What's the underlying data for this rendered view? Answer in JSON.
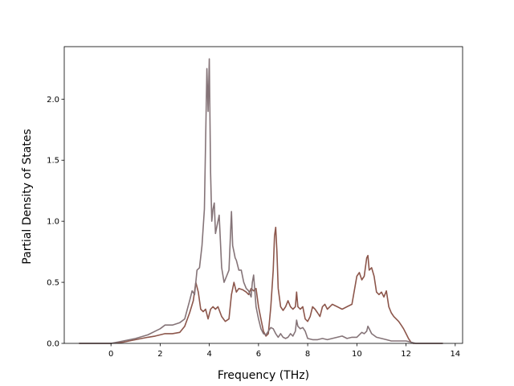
{
  "chart_data": {
    "type": "line",
    "title": "",
    "xlabel": "Frequency (THz)",
    "ylabel": "Partial Density of States",
    "xlim": [
      -1.9,
      14.3
    ],
    "ylim": [
      0.0,
      2.43
    ],
    "xticks": [
      0,
      2,
      4,
      6,
      8,
      10,
      12,
      14
    ],
    "xtick_labels": [
      "0",
      "2",
      "4",
      "6",
      "8",
      "10",
      "12",
      "14"
    ],
    "yticks": [
      0.0,
      0.5,
      1.0,
      1.5,
      2.0
    ],
    "ytick_labels": [
      "0.0",
      "0.5",
      "1.0",
      "1.5",
      "2.0"
    ],
    "grid": false,
    "legend": "none",
    "series": [
      {
        "color": "#8c564b",
        "x": [
          -1.3,
          0.0,
          0.5,
          1.0,
          1.5,
          1.8,
          2.0,
          2.2,
          2.5,
          2.8,
          3.0,
          3.2,
          3.35,
          3.45,
          3.55,
          3.65,
          3.75,
          3.85,
          3.95,
          4.05,
          4.15,
          4.25,
          4.35,
          4.5,
          4.65,
          4.8,
          4.9,
          5.0,
          5.1,
          5.2,
          5.35,
          5.5,
          5.6,
          5.7,
          5.8,
          5.9,
          6.0,
          6.1,
          6.2,
          6.3,
          6.4,
          6.5,
          6.6,
          6.65,
          6.7,
          6.75,
          6.8,
          6.9,
          7.0,
          7.1,
          7.2,
          7.3,
          7.4,
          7.5,
          7.55,
          7.6,
          7.7,
          7.8,
          7.9,
          8.0,
          8.1,
          8.2,
          8.3,
          8.4,
          8.5,
          8.6,
          8.7,
          8.8,
          8.9,
          9.0,
          9.2,
          9.4,
          9.6,
          9.8,
          10.0,
          10.1,
          10.2,
          10.3,
          10.4,
          10.45,
          10.5,
          10.6,
          10.7,
          10.8,
          10.9,
          11.0,
          11.1,
          11.2,
          11.3,
          11.4,
          11.5,
          11.6,
          11.7,
          11.8,
          11.9,
          12.0,
          12.1,
          12.2,
          12.3,
          13.5
        ],
        "y": [
          0.0,
          0.0,
          0.01,
          0.03,
          0.05,
          0.06,
          0.07,
          0.08,
          0.08,
          0.09,
          0.14,
          0.25,
          0.35,
          0.5,
          0.42,
          0.28,
          0.26,
          0.28,
          0.2,
          0.28,
          0.3,
          0.28,
          0.3,
          0.22,
          0.18,
          0.2,
          0.4,
          0.5,
          0.42,
          0.45,
          0.44,
          0.42,
          0.4,
          0.45,
          0.43,
          0.45,
          0.3,
          0.2,
          0.1,
          0.06,
          0.08,
          0.3,
          0.6,
          0.88,
          0.95,
          0.75,
          0.45,
          0.3,
          0.27,
          0.3,
          0.35,
          0.3,
          0.28,
          0.3,
          0.42,
          0.3,
          0.28,
          0.3,
          0.2,
          0.18,
          0.22,
          0.3,
          0.28,
          0.25,
          0.22,
          0.3,
          0.32,
          0.28,
          0.3,
          0.32,
          0.3,
          0.28,
          0.3,
          0.32,
          0.55,
          0.58,
          0.52,
          0.55,
          0.7,
          0.72,
          0.6,
          0.62,
          0.55,
          0.42,
          0.4,
          0.42,
          0.38,
          0.43,
          0.3,
          0.25,
          0.22,
          0.2,
          0.18,
          0.15,
          0.12,
          0.08,
          0.04,
          0.01,
          0.0,
          0.0
        ]
      },
      {
        "color": "#857478",
        "x": [
          -1.3,
          0.0,
          0.5,
          1.0,
          1.5,
          1.8,
          2.0,
          2.2,
          2.5,
          2.8,
          3.0,
          3.2,
          3.3,
          3.4,
          3.5,
          3.6,
          3.7,
          3.8,
          3.9,
          3.95,
          4.0,
          4.05,
          4.1,
          4.15,
          4.2,
          4.25,
          4.3,
          4.4,
          4.5,
          4.6,
          4.7,
          4.8,
          4.9,
          4.95,
          5.0,
          5.05,
          5.1,
          5.2,
          5.3,
          5.4,
          5.5,
          5.6,
          5.7,
          5.75,
          5.8,
          5.9,
          6.0,
          6.1,
          6.2,
          6.3,
          6.4,
          6.5,
          6.6,
          6.7,
          6.8,
          6.9,
          7.0,
          7.1,
          7.2,
          7.3,
          7.4,
          7.5,
          7.55,
          7.6,
          7.7,
          7.8,
          7.9,
          8.0,
          8.2,
          8.4,
          8.6,
          8.8,
          9.0,
          9.2,
          9.4,
          9.6,
          9.8,
          10.0,
          10.2,
          10.3,
          10.4,
          10.45,
          10.5,
          10.6,
          10.8,
          11.0,
          11.2,
          11.4,
          11.6,
          11.8,
          12.0,
          12.2,
          12.4,
          13.5
        ],
        "y": [
          0.0,
          0.0,
          0.02,
          0.04,
          0.07,
          0.1,
          0.12,
          0.15,
          0.15,
          0.17,
          0.2,
          0.35,
          0.43,
          0.4,
          0.6,
          0.62,
          0.8,
          1.1,
          2.25,
          1.9,
          2.33,
          1.4,
          1.0,
          1.1,
          1.15,
          0.9,
          0.95,
          1.05,
          0.62,
          0.5,
          0.55,
          0.6,
          1.08,
          0.8,
          0.75,
          0.7,
          0.68,
          0.6,
          0.6,
          0.5,
          0.45,
          0.43,
          0.38,
          0.5,
          0.56,
          0.3,
          0.2,
          0.12,
          0.08,
          0.07,
          0.1,
          0.13,
          0.12,
          0.08,
          0.05,
          0.08,
          0.05,
          0.04,
          0.05,
          0.08,
          0.06,
          0.1,
          0.19,
          0.14,
          0.12,
          0.13,
          0.1,
          0.04,
          0.03,
          0.03,
          0.04,
          0.03,
          0.04,
          0.05,
          0.06,
          0.04,
          0.05,
          0.05,
          0.09,
          0.08,
          0.1,
          0.14,
          0.12,
          0.08,
          0.05,
          0.04,
          0.03,
          0.02,
          0.02,
          0.02,
          0.02,
          0.01,
          0.0,
          0.0
        ]
      }
    ]
  }
}
